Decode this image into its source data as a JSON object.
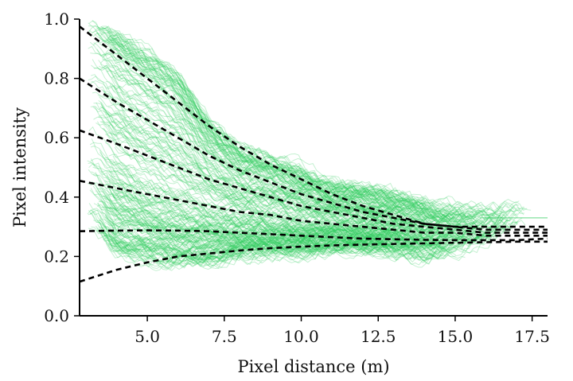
{
  "chart_data": {
    "type": "line",
    "title": "",
    "xlabel": "Pixel distance (m)",
    "ylabel": "Pixel intensity",
    "xlim": [
      2.8,
      18.0
    ],
    "ylim": [
      0.0,
      1.0
    ],
    "x_ticks": [
      5.0,
      7.5,
      10.0,
      12.5,
      15.0,
      17.5
    ],
    "x_tick_labels": [
      "5.0",
      "7.5",
      "10.0",
      "12.5",
      "15.0",
      "17.5"
    ],
    "y_ticks": [
      0.0,
      0.2,
      0.4,
      0.6,
      0.8,
      1.0
    ],
    "y_tick_labels": [
      "0.0",
      "0.2",
      "0.4",
      "0.6",
      "0.8",
      "1.0"
    ],
    "grid": false,
    "legend": "none",
    "colors": {
      "observed": "#2ecc5e",
      "fit": "#000000"
    },
    "observed_band": {
      "x": [
        3.2,
        4.0,
        5.0,
        6.0,
        7.0,
        8.0,
        9.0,
        10.0,
        11.0,
        12.0,
        13.0,
        14.0,
        15.0,
        16.0,
        17.0,
        18.0
      ],
      "upper": [
        0.99,
        0.95,
        0.88,
        0.8,
        0.65,
        0.55,
        0.52,
        0.48,
        0.44,
        0.42,
        0.4,
        0.37,
        0.35,
        0.34,
        0.36,
        0.33
      ],
      "median": [
        0.55,
        0.48,
        0.42,
        0.38,
        0.35,
        0.33,
        0.32,
        0.31,
        0.31,
        0.3,
        0.3,
        0.29,
        0.29,
        0.29,
        0.33,
        0.33
      ],
      "lower": [
        0.3,
        0.22,
        0.2,
        0.19,
        0.19,
        0.21,
        0.22,
        0.22,
        0.23,
        0.23,
        0.22,
        0.2,
        0.23,
        0.27,
        0.33,
        0.33
      ]
    },
    "series": [
      {
        "style": "dashed",
        "x": [
          2.8,
          4.0,
          5.0,
          6.0,
          7.0,
          8.0,
          9.0,
          10.0,
          11.0,
          12.0,
          13.0,
          14.0,
          15.0,
          16.0,
          17.0,
          18.0
        ],
        "y": [
          0.975,
          0.88,
          0.8,
          0.72,
          0.64,
          0.57,
          0.51,
          0.46,
          0.41,
          0.37,
          0.34,
          0.31,
          0.3,
          0.3,
          0.3,
          0.3
        ]
      },
      {
        "style": "dashed",
        "x": [
          2.8,
          4.0,
          5.0,
          6.0,
          7.0,
          8.0,
          9.0,
          10.0,
          11.0,
          12.0,
          13.0,
          14.0,
          15.0,
          16.0,
          17.0,
          18.0
        ],
        "y": [
          0.8,
          0.72,
          0.66,
          0.6,
          0.54,
          0.49,
          0.45,
          0.41,
          0.38,
          0.35,
          0.33,
          0.31,
          0.3,
          0.29,
          0.29,
          0.29
        ]
      },
      {
        "style": "dashed",
        "x": [
          2.8,
          4.0,
          5.0,
          6.0,
          7.0,
          8.0,
          9.0,
          10.0,
          11.0,
          12.0,
          13.0,
          14.0,
          15.0,
          16.0,
          17.0,
          18.0
        ],
        "y": [
          0.625,
          0.58,
          0.54,
          0.5,
          0.46,
          0.43,
          0.4,
          0.37,
          0.35,
          0.33,
          0.31,
          0.3,
          0.29,
          0.28,
          0.28,
          0.28
        ]
      },
      {
        "style": "dashed",
        "x": [
          2.8,
          4.0,
          5.0,
          6.0,
          7.0,
          8.0,
          9.0,
          10.0,
          11.0,
          12.0,
          13.0,
          14.0,
          15.0,
          16.0,
          17.0,
          18.0
        ],
        "y": [
          0.455,
          0.43,
          0.41,
          0.39,
          0.37,
          0.35,
          0.34,
          0.32,
          0.31,
          0.3,
          0.29,
          0.28,
          0.28,
          0.27,
          0.27,
          0.27
        ]
      },
      {
        "style": "dashed",
        "x": [
          2.8,
          4.0,
          5.0,
          6.0,
          7.0,
          8.0,
          9.0,
          10.0,
          11.0,
          12.0,
          13.0,
          14.0,
          15.0,
          16.0,
          17.0,
          18.0
        ],
        "y": [
          0.285,
          0.287,
          0.288,
          0.287,
          0.285,
          0.28,
          0.275,
          0.27,
          0.265,
          0.26,
          0.258,
          0.256,
          0.255,
          0.255,
          0.255,
          0.26
        ]
      },
      {
        "style": "dashed",
        "x": [
          2.8,
          4.0,
          5.0,
          6.0,
          7.0,
          8.0,
          9.0,
          10.0,
          11.0,
          12.0,
          13.0,
          14.0,
          15.0,
          16.0,
          17.0,
          18.0
        ],
        "y": [
          0.115,
          0.155,
          0.18,
          0.2,
          0.21,
          0.22,
          0.228,
          0.233,
          0.237,
          0.24,
          0.242,
          0.244,
          0.246,
          0.248,
          0.25,
          0.25
        ]
      }
    ]
  }
}
